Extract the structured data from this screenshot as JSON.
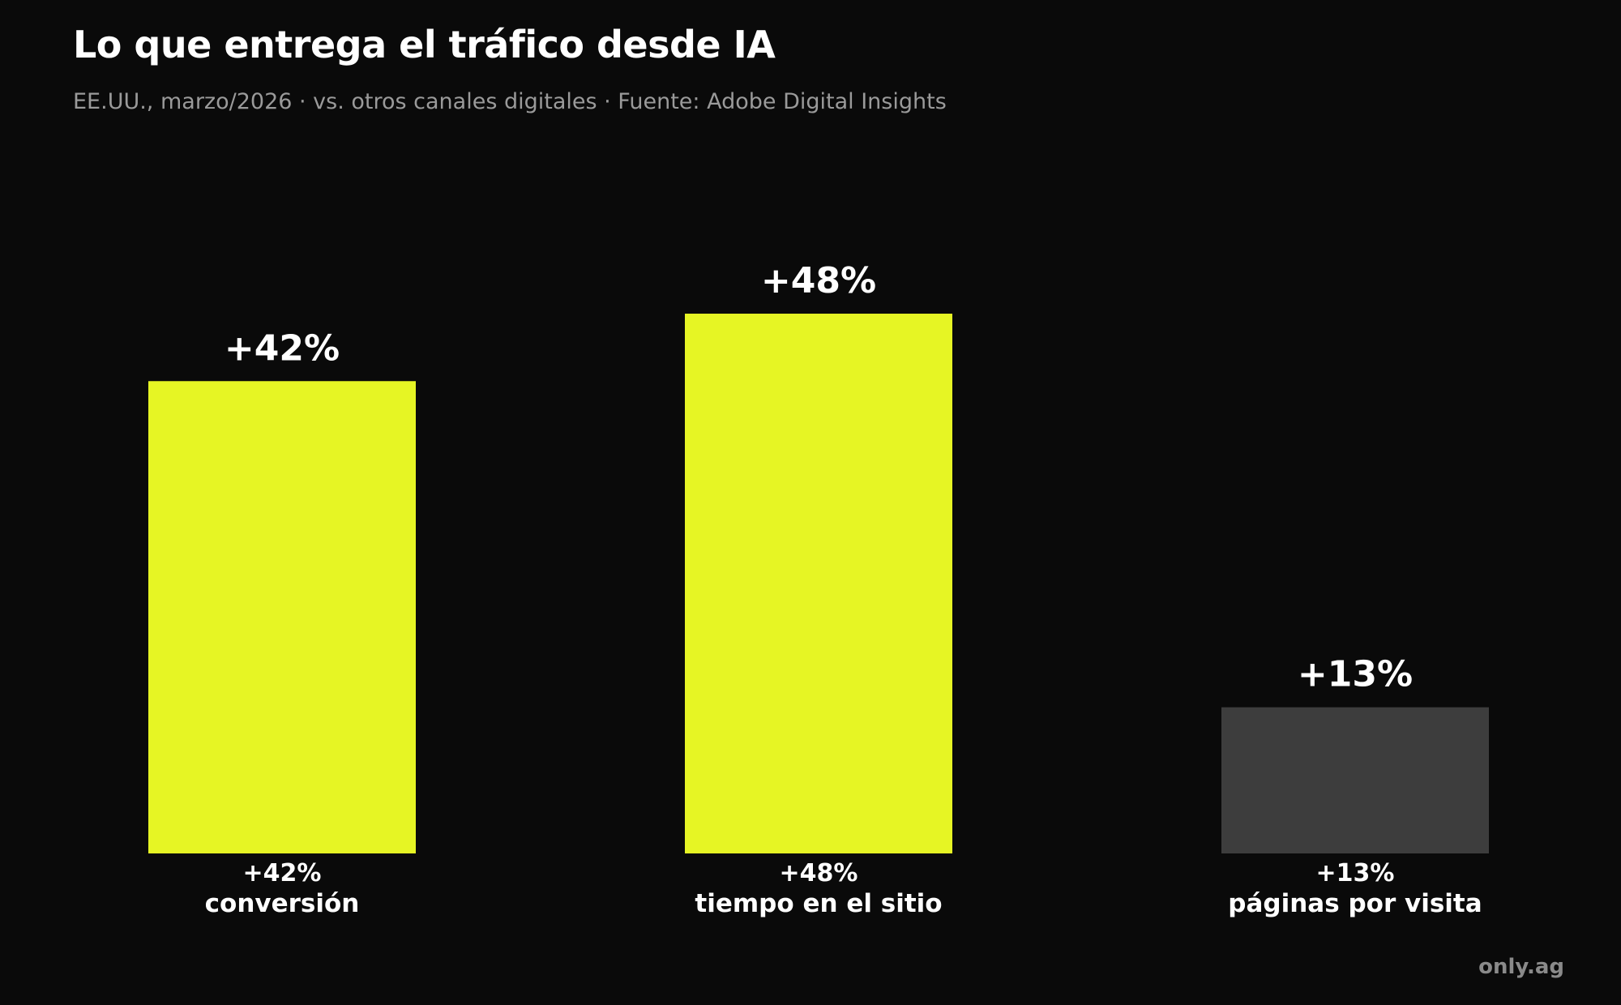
{
  "chart_data": {
    "type": "bar",
    "title": "Lo que entrega el tráfico desde IA",
    "subtitle": "EE.UU., marzo/2026 · vs. otros canales digitales · Fuente: Adobe Digital Insights",
    "xlabel": "",
    "ylabel": "",
    "grid": false,
    "legend": "none",
    "ylim": [
      0,
      48
    ],
    "categories": [
      "conversión",
      "tiempo en el sitio",
      "páginas por visita"
    ],
    "values": [
      42,
      48,
      13
    ],
    "value_labels": [
      "+42%",
      "+48%",
      "+13%"
    ],
    "bar_colors": [
      "#e6f524",
      "#e6f524",
      "#3d3d3d"
    ]
  },
  "colors": {
    "background": "#0a0a0a",
    "accent": "#e6f524",
    "muted_bar": "#3d3d3d",
    "text": "#ffffff",
    "subtitle": "#9a9a9a",
    "watermark": "#8a8a8a"
  },
  "footer": {
    "watermark": "only.ag"
  }
}
